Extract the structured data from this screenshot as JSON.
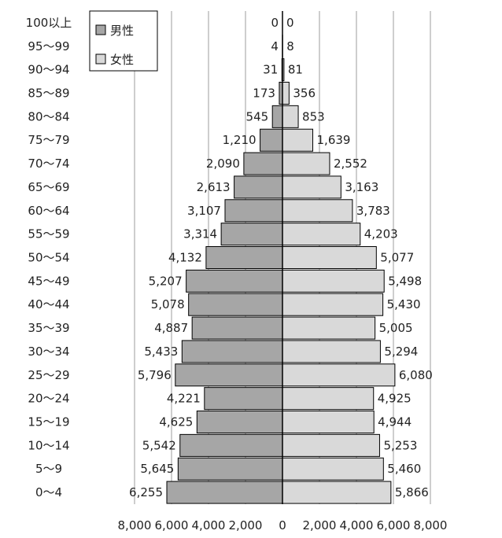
{
  "chart_data": {
    "type": "bar",
    "orientation": "horizontal-population-pyramid",
    "categories": [
      "100以上",
      "95～99",
      "90～94",
      "85～89",
      "80～84",
      "75～79",
      "70～74",
      "65～69",
      "60～64",
      "55～59",
      "50～54",
      "45～49",
      "40～44",
      "35～39",
      "30～34",
      "25～29",
      "20～24",
      "15～19",
      "10～14",
      "5～9",
      "0～4"
    ],
    "series": [
      {
        "name": "男性",
        "color": "#a6a6a6",
        "values": [
          0,
          4,
          31,
          173,
          545,
          1210,
          2090,
          2613,
          3107,
          3314,
          4132,
          5207,
          5078,
          4887,
          5433,
          5796,
          4221,
          4625,
          5542,
          5645,
          6255
        ],
        "labels": [
          "0",
          "4",
          "31",
          "173",
          "545",
          "1,210",
          "2,090",
          "2,613",
          "3,107",
          "3,314",
          "4,132",
          "5,207",
          "5,078",
          "4,887",
          "5,433",
          "5,796",
          "4,221",
          "4,625",
          "5,542",
          "5,645",
          "6,255"
        ]
      },
      {
        "name": "女性",
        "color": "#d9d9d9",
        "values": [
          0,
          8,
          81,
          356,
          853,
          1639,
          2552,
          3163,
          3783,
          4203,
          5077,
          5498,
          5430,
          5005,
          5294,
          6080,
          4925,
          4944,
          5253,
          5460,
          5866
        ],
        "labels": [
          "0",
          "8",
          "81",
          "356",
          "853",
          "1,639",
          "2,552",
          "3,163",
          "3,783",
          "4,203",
          "5,077",
          "5,498",
          "5,430",
          "5,005",
          "5,294",
          "6,080",
          "4,925",
          "4,944",
          "5,253",
          "5,460",
          "5,866"
        ]
      }
    ],
    "x_ticks": [
      "8,000",
      "6,000",
      "4,000",
      "2,000",
      "0",
      "2,000",
      "4,000",
      "6,000",
      "8,000"
    ],
    "xlim": [
      -8000,
      8000
    ],
    "grid": true,
    "legend_position": "top-left"
  }
}
